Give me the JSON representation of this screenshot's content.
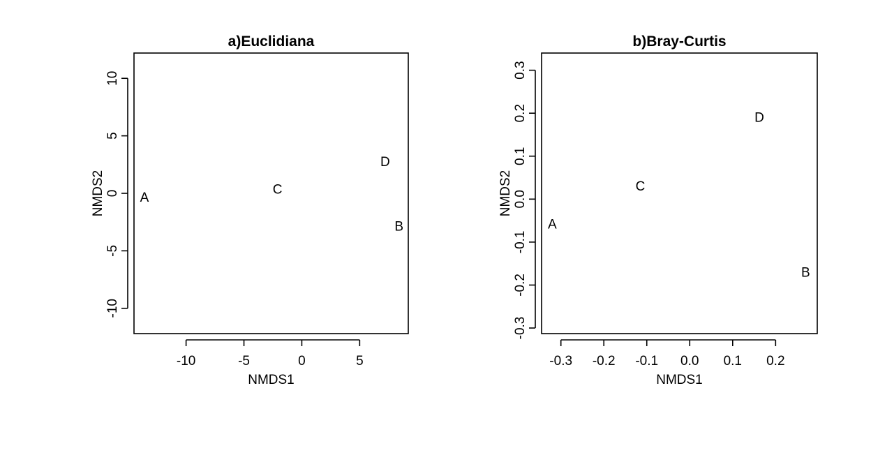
{
  "chart_data": [
    {
      "type": "scatter",
      "title": "a)Euclidiana",
      "xlabel": "NMDS1",
      "ylabel": "NMDS2",
      "xlim": [
        -14.5,
        9.2
      ],
      "ylim": [
        -12.2,
        12.2
      ],
      "xticks": [
        -10,
        -5,
        0,
        5
      ],
      "yticks": [
        -10,
        -5,
        0,
        5,
        10
      ],
      "points": [
        {
          "label": "A",
          "x": -13.6,
          "y": -0.4
        },
        {
          "label": "B",
          "x": 8.4,
          "y": -2.9
        },
        {
          "label": "C",
          "x": -2.1,
          "y": 0.3
        },
        {
          "label": "D",
          "x": 7.2,
          "y": 2.7
        }
      ]
    },
    {
      "type": "scatter",
      "title": "b)Bray-Curtis",
      "xlabel": "NMDS1",
      "ylabel": "NMDS2",
      "xlim": [
        -0.345,
        0.297
      ],
      "ylim": [
        -0.313,
        0.34
      ],
      "xticks": [
        -0.3,
        -0.2,
        -0.1,
        0.0,
        0.1,
        0.2
      ],
      "xtick_labels": [
        "-0.3",
        "-0.2",
        "-0.1",
        "0.0",
        "0.1",
        "0.2"
      ],
      "yticks": [
        -0.3,
        -0.2,
        -0.1,
        0.0,
        0.1,
        0.2,
        0.3
      ],
      "ytick_labels": [
        "-0.3",
        "-0.2",
        "-0.1",
        "0.0",
        "0.1",
        "0.2",
        "0.3"
      ],
      "points": [
        {
          "label": "A",
          "x": -0.32,
          "y": -0.06
        },
        {
          "label": "B",
          "x": 0.27,
          "y": -0.172
        },
        {
          "label": "C",
          "x": -0.115,
          "y": 0.029
        },
        {
          "label": "D",
          "x": 0.162,
          "y": 0.189
        }
      ]
    }
  ]
}
